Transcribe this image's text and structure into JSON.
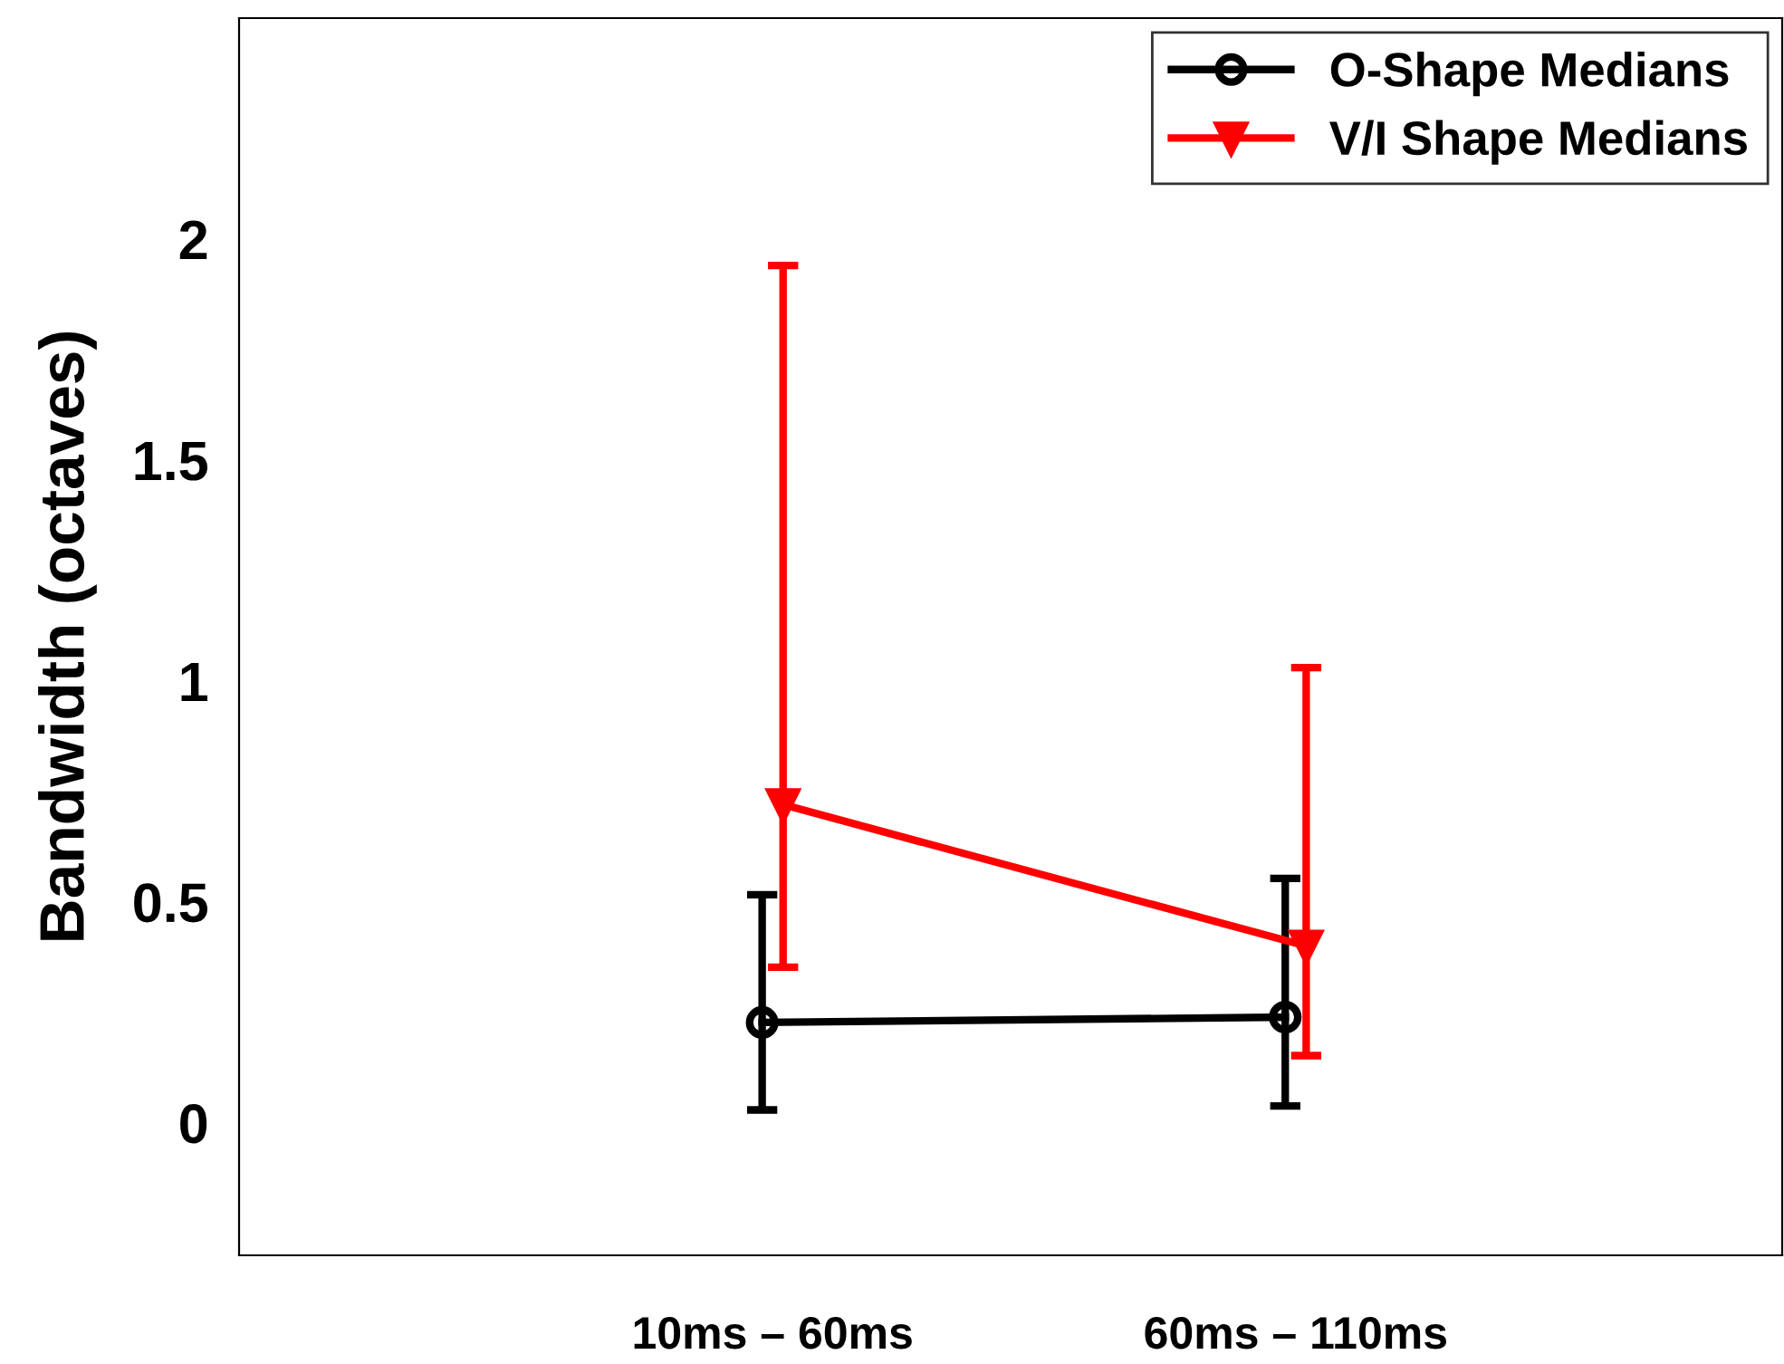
{
  "chart_data": {
    "type": "line",
    "ylabel": "Bandwidth (octaves)",
    "categories": [
      "10ms – 60ms",
      "60ms – 110ms"
    ],
    "series": [
      {
        "name": "O-Shape Medians",
        "color": "#000000",
        "marker": "circle",
        "values": [
          0.227,
          0.239
        ],
        "errors": [
          [
            0.029,
            0.516
          ],
          [
            0.038,
            0.553
          ]
        ]
      },
      {
        "name": "V/I Shape Medians",
        "color": "#ff0000",
        "marker": "triangle",
        "values": [
          0.72,
          0.4
        ],
        "errors": [
          [
            0.352,
            1.94
          ],
          [
            0.152,
            1.03
          ]
        ]
      }
    ],
    "ylim": [
      -0.3,
      2.5
    ],
    "yticks": [
      0,
      0.5,
      1,
      1.5,
      2
    ],
    "grid": false,
    "legend": "top right",
    "line_style": "solid"
  }
}
